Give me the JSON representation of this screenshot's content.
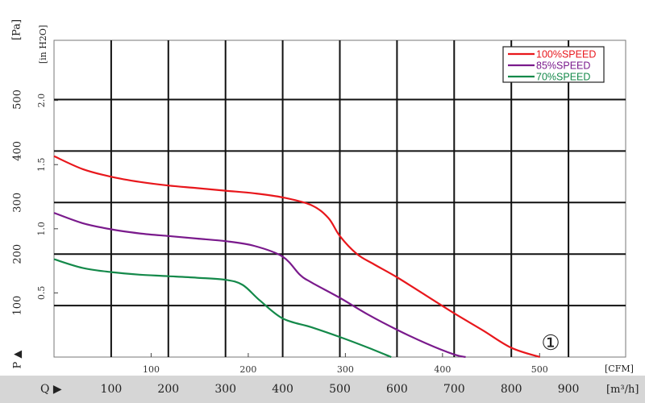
{
  "chart_data": {
    "type": "line",
    "title": "",
    "left_unit_label": "[Pa]",
    "inner_unit_label": "[in H2O]",
    "p_axis_label": "P ▲",
    "q_axis_label": "Q ▶",
    "cfm_unit_label": "[CFM]",
    "m3h_unit_label": "[m³/h]",
    "curve_marker": "①",
    "pa_ticks": [
      "100",
      "200",
      "300",
      "400",
      "500"
    ],
    "inh2o_ticks": [
      "0.5",
      "1.0",
      "1.5",
      "2.0"
    ],
    "cfm_ticks": [
      "100",
      "200",
      "300",
      "400",
      "500"
    ],
    "m3h_ticks": [
      "100",
      "200",
      "300",
      "400",
      "500",
      "600",
      "700",
      "800",
      "900"
    ],
    "x_unit": "m3/h",
    "y_unit": "Pa",
    "xlim": [
      0,
      1000
    ],
    "ylim": [
      0,
      615
    ],
    "grid": true,
    "legend_position": "top-right",
    "series": [
      {
        "name": "100%SPEED",
        "color": "#e8171c",
        "x": [
          0,
          50,
          100,
          150,
          200,
          250,
          300,
          350,
          400,
          450,
          480,
          500,
          530,
          560,
          600,
          650,
          700,
          750,
          800,
          850
        ],
        "y": [
          390,
          365,
          350,
          340,
          333,
          328,
          323,
          318,
          310,
          295,
          270,
          235,
          200,
          180,
          155,
          120,
          85,
          52,
          18,
          0
        ]
      },
      {
        "name": "85%SPEED",
        "color": "#7a1a8c",
        "x": [
          0,
          50,
          100,
          150,
          200,
          250,
          300,
          350,
          400,
          430,
          450,
          500,
          550,
          600,
          650,
          700,
          720
        ],
        "y": [
          280,
          260,
          248,
          240,
          235,
          230,
          225,
          216,
          195,
          160,
          145,
          115,
          82,
          53,
          27,
          5,
          0
        ]
      },
      {
        "name": "70%SPEED",
        "color": "#14894a",
        "x": [
          0,
          50,
          100,
          150,
          200,
          250,
          300,
          330,
          360,
          400,
          450,
          500,
          550,
          590
        ],
        "y": [
          190,
          173,
          165,
          160,
          157,
          154,
          150,
          140,
          110,
          75,
          58,
          39,
          18,
          0
        ]
      }
    ]
  }
}
